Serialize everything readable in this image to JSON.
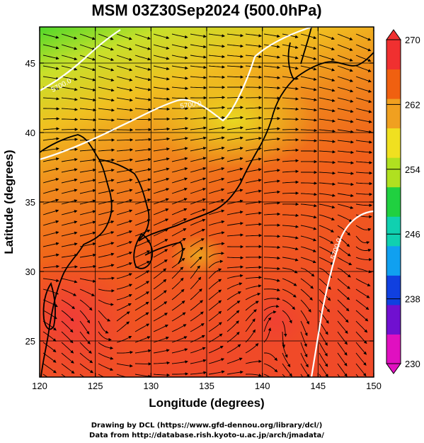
{
  "title": "MSM 03Z30Sep2024 (500.0hPa)",
  "x_axis": {
    "label": "Longitude (degrees)",
    "range": [
      120,
      150
    ],
    "ticks": [
      120,
      125,
      130,
      135,
      140,
      145,
      150
    ]
  },
  "y_axis": {
    "label": "Latitude  (degrees)",
    "range": [
      22.4,
      47.6
    ],
    "ticks": [
      25,
      30,
      35,
      40,
      45
    ]
  },
  "colorbar": {
    "range": [
      230,
      270
    ],
    "ticks": [
      230,
      238,
      246,
      254,
      262,
      270
    ],
    "colors_low_to_high": [
      "#e010c0",
      "#7010d0",
      "#1040e0",
      "#10a0f0",
      "#10d0b0",
      "#20d040",
      "#b0e020",
      "#f0e020",
      "#f0a020",
      "#f06010",
      "#f03030"
    ]
  },
  "contours": [
    {
      "label": "5700.0",
      "color": "#ffffff"
    },
    {
      "label": "5700.0",
      "color": "#ffffff"
    },
    {
      "label": "5700.0",
      "color": "#ffffff"
    }
  ],
  "map": {
    "field": "temperature colour shading with wind streamlines",
    "grid": true,
    "streamlines": true
  },
  "credits": [
    "Drawing by DCL (https://www.gfd-dennou.org/library/dcl/)",
    "Data from http://database.rish.kyoto-u.ac.jp/arch/jmadata/"
  ]
}
